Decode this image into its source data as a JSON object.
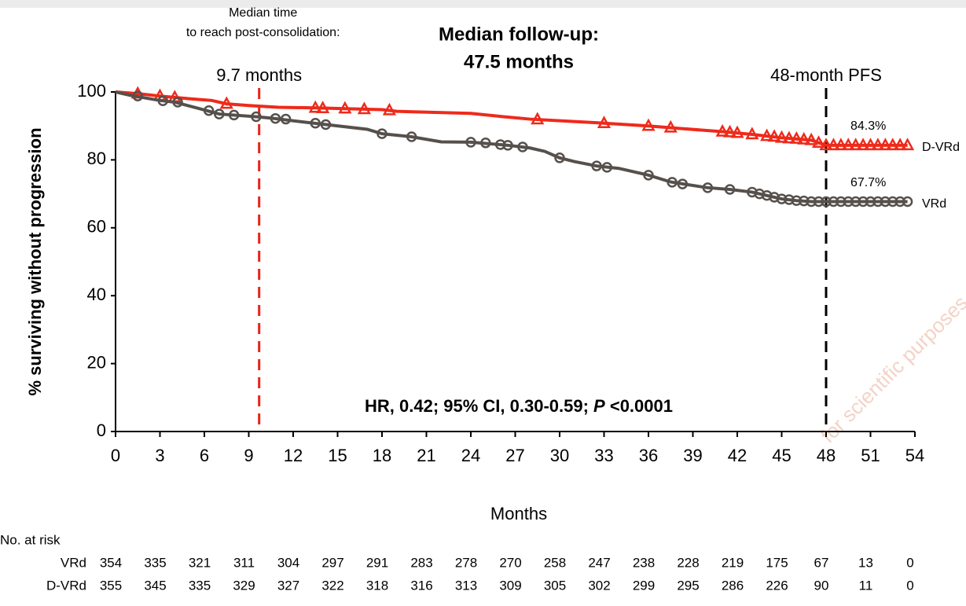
{
  "chart_data": {
    "type": "km",
    "title": [
      "Median follow-up:",
      "47.5 months"
    ],
    "xlabel": "Months",
    "ylabel": "% surviving without progression",
    "xlim": [
      0,
      54
    ],
    "ylim": [
      0,
      100
    ],
    "xticks": [
      0,
      3,
      6,
      9,
      12,
      15,
      18,
      21,
      24,
      27,
      30,
      33,
      36,
      39,
      42,
      45,
      48,
      51,
      54
    ],
    "yticks": [
      0,
      20,
      40,
      60,
      80,
      100
    ],
    "series": [
      {
        "name": "D-VRd",
        "color": "#ee2a1b",
        "marker": "triangle",
        "end_label": "84.3%",
        "x": [
          0,
          1.5,
          3,
          5,
          6.5,
          7.5,
          9,
          11,
          13.5,
          18,
          19,
          24,
          26,
          28,
          31,
          33,
          36,
          38,
          41,
          43,
          45,
          47,
          48,
          53.5
        ],
        "values": [
          100,
          99.5,
          98.8,
          98,
          97.5,
          96.5,
          96,
          95.5,
          95.3,
          94.8,
          94.3,
          93.7,
          92.8,
          92,
          91.3,
          90.8,
          90,
          89.3,
          88.3,
          87.5,
          86.5,
          85.8,
          84.3,
          84.3
        ],
        "censor_x": [
          1.5,
          3,
          4,
          7.5,
          13.5,
          14,
          15.5,
          16.8,
          18.5,
          28.5,
          33,
          36,
          37.5,
          41,
          41.5,
          42,
          43,
          44,
          44.5,
          45,
          45.5,
          46,
          46.5,
          47,
          47.5,
          48,
          48.5,
          49,
          49.5,
          50,
          50.5,
          51,
          51.5,
          52,
          52.5,
          53,
          53.5
        ],
        "censor_values": [
          99.5,
          98.8,
          98.4,
          96.5,
          95.3,
          95.2,
          95.1,
          94.9,
          94.6,
          91.9,
          90.8,
          90,
          89.5,
          88.3,
          88.1,
          87.9,
          87.5,
          87,
          86.8,
          86.5,
          86.3,
          86.2,
          86,
          85.8,
          85,
          84.3,
          84.3,
          84.3,
          84.3,
          84.3,
          84.3,
          84.3,
          84.3,
          84.3,
          84.3,
          84.3,
          84.3
        ]
      },
      {
        "name": "VRd",
        "color": "#56504c",
        "marker": "circle",
        "end_label": "67.7%",
        "x": [
          0,
          1,
          3,
          4,
          6,
          7,
          9.5,
          10.5,
          13,
          14,
          17,
          18,
          20,
          22,
          24,
          26.5,
          28,
          29,
          30,
          31,
          32.5,
          34,
          36,
          37.5,
          38.5,
          40,
          41.5,
          43,
          44,
          45,
          46,
          47,
          53.5
        ],
        "values": [
          100,
          99,
          97.5,
          97,
          94.7,
          93.5,
          92.7,
          92.3,
          91,
          90.5,
          89,
          87.7,
          86.8,
          85.3,
          85.2,
          84.3,
          83.5,
          82.5,
          80.6,
          79.5,
          78.2,
          77.5,
          75.5,
          73.5,
          72.8,
          71.8,
          71.3,
          70.5,
          69.5,
          68.5,
          68,
          67.7,
          67.7
        ],
        "censor_x": [
          1.5,
          3.2,
          4.2,
          6.3,
          7,
          8,
          9.5,
          10.8,
          11.5,
          13.5,
          14.2,
          18,
          20,
          24,
          25,
          26,
          26.5,
          27.5,
          30,
          32.5,
          33.2,
          36,
          37.6,
          38.3,
          40,
          41.5,
          43,
          43.5,
          44,
          44.5,
          45,
          45.5,
          46,
          46.5,
          47,
          47.5,
          48,
          48.5,
          49,
          49.5,
          50,
          50.5,
          51,
          51.5,
          52,
          52.5,
          53,
          53.5
        ],
        "censor_values": [
          98.8,
          97.4,
          97,
          94.5,
          93.5,
          93.2,
          92.7,
          92.2,
          92,
          90.8,
          90.4,
          87.7,
          86.8,
          85.2,
          85,
          84.5,
          84.3,
          83.8,
          80.6,
          78.2,
          77.8,
          75.5,
          73.4,
          72.9,
          71.8,
          71.3,
          70.5,
          70,
          69.5,
          69,
          68.5,
          68.3,
          68,
          67.9,
          67.7,
          67.7,
          67.7,
          67.7,
          67.7,
          67.7,
          67.7,
          67.7,
          67.7,
          67.7,
          67.7,
          67.7,
          67.7,
          67.7
        ]
      }
    ],
    "vlines": [
      {
        "x": 9.7,
        "color": "#e8231a",
        "label": "9.7 months",
        "note": [
          "Median time",
          "to reach post-consolidation:"
        ]
      },
      {
        "x": 48,
        "color": "#000000",
        "label": "48-month PFS"
      }
    ],
    "hr_text": [
      "HR, 0.42; 95% CI, 0.30-0.59; ",
      "P",
      " <0.0001"
    ],
    "watermark": "for scientific purposes",
    "at_risk": {
      "title": "No. at risk",
      "rows": [
        {
          "label": "VRd",
          "values": [
            354,
            335,
            321,
            311,
            304,
            297,
            291,
            283,
            278,
            270,
            258,
            247,
            238,
            228,
            219,
            175,
            67,
            13,
            0
          ]
        },
        {
          "label": "D-VRd",
          "values": [
            355,
            345,
            335,
            329,
            327,
            322,
            318,
            316,
            313,
            309,
            305,
            302,
            299,
            295,
            286,
            226,
            90,
            11,
            0
          ]
        }
      ]
    }
  }
}
